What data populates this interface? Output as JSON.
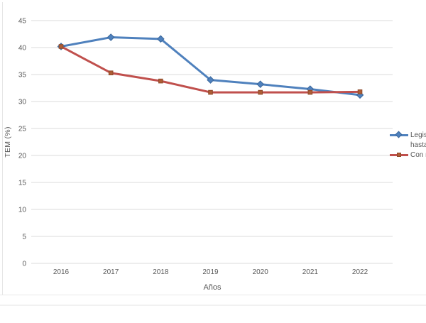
{
  "chart_data": {
    "type": "line",
    "xlabel": "Años",
    "ylabel": "TEM (%)",
    "categories": [
      "2016",
      "2017",
      "2018",
      "2019",
      "2020",
      "2021",
      "2022"
    ],
    "series": [
      {
        "name": "Legis hasta (clipped at image edge)",
        "values": [
          40.2,
          41.9,
          41.6,
          34.0,
          33.2,
          32.3,
          31.2
        ]
      },
      {
        "name": "Con n (clipped at image edge)",
        "values": [
          40.2,
          35.3,
          33.8,
          31.7,
          31.7,
          31.7,
          31.8
        ]
      }
    ],
    "legend": [
      {
        "line1": "Legis",
        "line2": "hasta"
      },
      {
        "line1": "Con n"
      }
    ],
    "ylim": [
      0,
      45
    ],
    "yticks": [
      0,
      5,
      10,
      15,
      20,
      25,
      30,
      35,
      40,
      45
    ],
    "grid": true,
    "legend_position": "right",
    "colors": {
      "series1_line": "#4F81BD",
      "series1_marker": "#4F81BD",
      "series1_marker_edge": "#3a679c",
      "series2_line": "#C0504D",
      "series2_marker": "#ae5d35",
      "series2_marker_edge": "#8f4a2b",
      "gridline": "#dbdbdb",
      "axis_text": "#595959"
    }
  }
}
